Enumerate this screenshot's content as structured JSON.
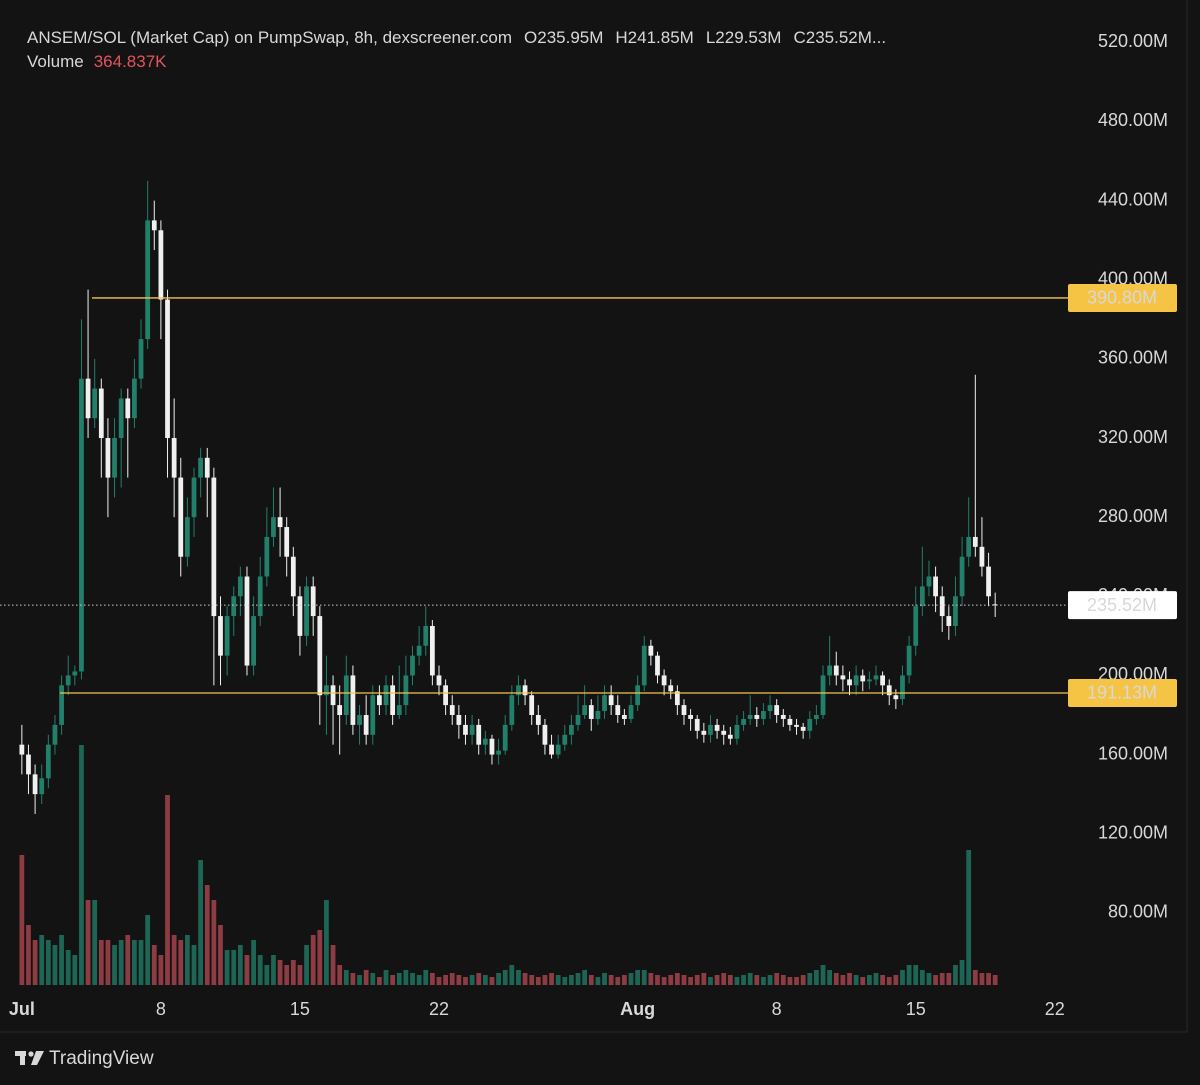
{
  "chart_data": {
    "type": "candlestick",
    "title": "ANSEM/SOL (Market Cap) on PumpSwap, 8h, dexscreener.com",
    "ohlc_labels": [
      "O235.95M",
      "H241.85M",
      "L229.53M",
      "C235.52M..."
    ],
    "volume_title": "Volume",
    "volume_label": "364.837K",
    "brand": "TradingView",
    "up_color": "#22806a",
    "down_color": "#f0f0f0",
    "volume_up_color": "#1d6656",
    "volume_down_color": "#8c3c42",
    "volume_label_color": "#e5535c",
    "ylim": [
      41,
      541.4
    ],
    "yticks": [
      {
        "value": 80,
        "label": "80.00M"
      },
      {
        "value": 120,
        "label": "120.00M"
      },
      {
        "value": 160,
        "label": "160.00M"
      },
      {
        "value": 200,
        "label": "200.00M"
      },
      {
        "value": 240,
        "label": "240.00M"
      },
      {
        "value": 280,
        "label": "280.00M"
      },
      {
        "value": 320,
        "label": "320.00M"
      },
      {
        "value": 360,
        "label": "360.00M"
      },
      {
        "value": 400,
        "label": "400.00M"
      },
      {
        "value": 440,
        "label": "440.00M"
      },
      {
        "value": 480,
        "label": "480.00M"
      },
      {
        "value": 520,
        "label": "520.00M"
      }
    ],
    "xlim": [
      -3.3,
      158.3
    ],
    "xticks": [
      {
        "value": 0,
        "label": "Jul"
      },
      {
        "value": 21,
        "label": "8"
      },
      {
        "value": 42,
        "label": "15"
      },
      {
        "value": 63,
        "label": "22"
      },
      {
        "value": 93,
        "label": "Aug"
      },
      {
        "value": 114,
        "label": "8"
      },
      {
        "value": 135,
        "label": "15"
      },
      {
        "value": 156,
        "label": "22"
      }
    ],
    "hlines": [
      {
        "value": 390.8,
        "label": "390.80M",
        "color": "#f6c445"
      },
      {
        "value": 191.13,
        "label": "191.13M",
        "color": "#f6c445"
      }
    ],
    "last_price": {
      "value": 235.52,
      "label": "235.52M"
    },
    "series": [
      {
        "name": "ANSEM/SOL",
        "open": [
          165,
          160,
          150,
          140,
          148,
          165,
          175,
          195,
          200,
          202,
          350,
          330,
          345,
          320,
          300,
          320,
          340,
          330,
          350,
          370,
          430,
          425,
          390,
          320,
          300,
          260,
          280,
          300,
          310,
          300,
          230,
          210,
          230,
          240,
          250,
          205,
          230,
          250,
          270,
          280,
          275,
          260,
          240,
          220,
          245,
          230,
          190,
          195,
          185,
          180,
          200,
          175,
          180,
          170,
          190,
          185,
          195,
          180,
          185,
          200,
          210,
          215,
          225,
          200,
          195,
          185,
          180,
          175,
          170,
          175,
          165,
          168,
          160,
          162,
          175,
          190,
          195,
          190,
          180,
          175,
          165,
          160,
          165,
          170,
          175,
          180,
          185,
          178,
          182,
          190,
          185,
          180,
          178,
          185,
          195,
          215,
          210,
          200,
          195,
          192,
          185,
          180,
          178,
          172,
          170,
          175,
          172,
          170,
          168,
          175,
          178,
          180,
          178,
          182,
          185,
          180,
          178,
          175,
          174,
          172,
          178,
          180,
          200,
          205,
          200,
          198,
          195,
          200,
          197,
          198,
          200,
          195,
          190,
          188,
          200,
          215,
          235,
          245,
          250,
          240,
          230,
          225,
          240,
          260,
          270,
          265,
          255,
          235.95
        ],
        "high": [
          175,
          165,
          155,
          155,
          170,
          180,
          200,
          210,
          205,
          380,
          395,
          360,
          350,
          330,
          330,
          345,
          345,
          360,
          380,
          450,
          440,
          430,
          395,
          340,
          310,
          290,
          305,
          315,
          315,
          305,
          240,
          235,
          245,
          255,
          255,
          240,
          260,
          285,
          295,
          295,
          280,
          265,
          245,
          250,
          250,
          235,
          210,
          200,
          195,
          210,
          205,
          185,
          190,
          195,
          195,
          200,
          200,
          205,
          210,
          215,
          225,
          235,
          228,
          205,
          198,
          190,
          185,
          180,
          180,
          178,
          172,
          170,
          168,
          180,
          195,
          200,
          198,
          192,
          185,
          178,
          170,
          170,
          175,
          180,
          190,
          195,
          188,
          190,
          195,
          195,
          190,
          183,
          190,
          200,
          220,
          218,
          212,
          203,
          198,
          195,
          188,
          183,
          180,
          176,
          180,
          178,
          175,
          174,
          180,
          182,
          190,
          184,
          186,
          190,
          188,
          183,
          180,
          178,
          176,
          182,
          185,
          205,
          220,
          212,
          205,
          202,
          205,
          203,
          202,
          205,
          202,
          198,
          193,
          205,
          220,
          245,
          265,
          258,
          255,
          245,
          235,
          250,
          270,
          290,
          352,
          280,
          262,
          241.85
        ],
        "low": [
          150,
          140,
          130,
          135,
          143,
          160,
          170,
          190,
          195,
          198,
          320,
          325,
          300,
          280,
          290,
          295,
          300,
          325,
          345,
          365,
          415,
          370,
          300,
          280,
          250,
          255,
          270,
          290,
          280,
          195,
          195,
          200,
          220,
          230,
          200,
          200,
          225,
          245,
          265,
          260,
          250,
          230,
          210,
          215,
          220,
          175,
          170,
          165,
          160,
          175,
          170,
          165,
          165,
          165,
          180,
          180,
          175,
          178,
          180,
          195,
          205,
          210,
          195,
          190,
          180,
          175,
          168,
          165,
          165,
          160,
          160,
          155,
          155,
          160,
          172,
          185,
          185,
          175,
          170,
          160,
          158,
          158,
          162,
          165,
          172,
          178,
          172,
          175,
          178,
          180,
          176,
          175,
          176,
          182,
          192,
          205,
          196,
          190,
          188,
          180,
          175,
          172,
          168,
          166,
          166,
          168,
          165,
          165,
          165,
          172,
          175,
          174,
          175,
          178,
          176,
          174,
          172,
          170,
          168,
          168,
          175,
          178,
          195,
          195,
          192,
          190,
          190,
          192,
          193,
          195,
          190,
          185,
          183,
          185,
          196,
          210,
          230,
          240,
          232,
          222,
          218,
          220,
          235,
          255,
          260,
          250,
          235,
          229.53
        ],
        "close": [
          160,
          150,
          140,
          148,
          165,
          175,
          195,
          200,
          202,
          350,
          330,
          345,
          320,
          300,
          320,
          340,
          330,
          350,
          370,
          430,
          425,
          390,
          320,
          300,
          260,
          280,
          300,
          310,
          300,
          230,
          210,
          230,
          240,
          250,
          205,
          230,
          250,
          270,
          280,
          275,
          260,
          240,
          220,
          245,
          230,
          190,
          195,
          185,
          180,
          200,
          175,
          180,
          170,
          190,
          185,
          195,
          180,
          185,
          200,
          210,
          215,
          225,
          200,
          195,
          185,
          180,
          175,
          170,
          175,
          165,
          168,
          160,
          162,
          175,
          190,
          195,
          190,
          180,
          175,
          165,
          160,
          165,
          170,
          175,
          180,
          185,
          178,
          182,
          190,
          185,
          180,
          178,
          185,
          195,
          215,
          210,
          200,
          195,
          192,
          185,
          180,
          178,
          172,
          170,
          175,
          172,
          170,
          168,
          175,
          178,
          180,
          178,
          182,
          185,
          180,
          178,
          175,
          174,
          172,
          178,
          180,
          200,
          205,
          200,
          198,
          195,
          200,
          197,
          198,
          200,
          195,
          190,
          188,
          200,
          215,
          235,
          245,
          250,
          240,
          230,
          225,
          240,
          260,
          270,
          265,
          255,
          240,
          235.52
        ],
        "volume": [
          4745,
          2190,
          1643,
          1825,
          1643,
          1460,
          1825,
          1278,
          1095,
          8760,
          3103,
          3103,
          1643,
          1643,
          1460,
          1643,
          1825,
          1643,
          1643,
          2555,
          1460,
          1095,
          6935,
          1825,
          1643,
          1825,
          1460,
          4563,
          3650,
          3103,
          2190,
          1278,
          1278,
          1460,
          1095,
          1643,
          1095,
          730,
          1095,
          913,
          730,
          913,
          730,
          1460,
          1825,
          2008,
          3103,
          1460,
          730,
          548,
          438,
          365,
          548,
          438,
          292,
          548,
          365,
          438,
          548,
          438,
          365,
          548,
          438,
          292,
          365,
          438,
          365,
          292,
          365,
          438,
          365,
          292,
          438,
          548,
          730,
          548,
          438,
          365,
          292,
          365,
          438,
          365,
          292,
          365,
          438,
          548,
          365,
          292,
          438,
          365,
          292,
          365,
          438,
          548,
          548,
          438,
          365,
          292,
          365,
          438,
          365,
          292,
          365,
          438,
          292,
          365,
          438,
          365,
          292,
          365,
          438,
          365,
          292,
          365,
          438,
          365,
          292,
          292,
          365,
          438,
          548,
          730,
          548,
          438,
          365,
          438,
          365,
          292,
          365,
          438,
          365,
          292,
          365,
          548,
          730,
          730,
          548,
          438,
          365,
          438,
          438,
          730,
          913,
          4928,
          548,
          438,
          438,
          364.837
        ]
      }
    ]
  }
}
